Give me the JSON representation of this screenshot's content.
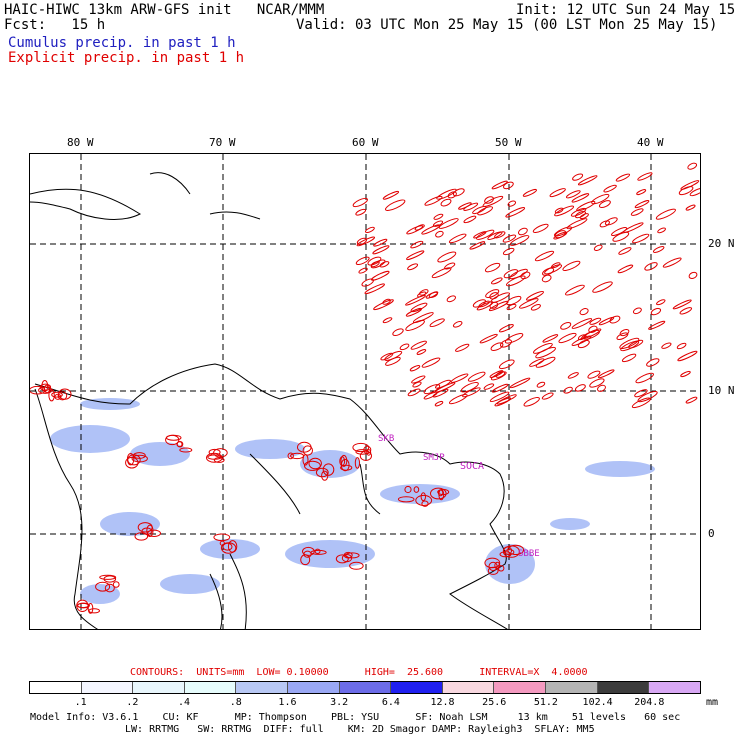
{
  "header": {
    "line1_left": "HAIC-HIWC 13km ARW-GFS init   NCAR/MMM",
    "line1_right": "Init: 12 UTC Sun 24 May 15",
    "line2_left": "Fcst:   15 h",
    "line2_right": "Valid: 03 UTC Mon 25 May 15 (00 LST Mon 25 May 15)",
    "legend_cumulus": "Cumulus precip. in past 1 h",
    "legend_explicit": "Explicit precip. in past 1 h"
  },
  "map": {
    "lon_labels": [
      "80 W",
      "70 W",
      "60 W",
      "50 W",
      "40 W"
    ],
    "lat_labels": [
      "20 N",
      "10 N",
      "0"
    ],
    "stations": [
      "SKB",
      "SMJP",
      "SOCA",
      "SBBE"
    ],
    "colors": {
      "cumulus": "#6c8cf0",
      "explicit": "#e00000",
      "grid": "#000000"
    }
  },
  "contour_info": "CONTOURS:  UNITS=mm  LOW= 0.10000      HIGH=  25.600      INTERVAL=X  4.0000",
  "colorbar": {
    "ticks": [
      ".1",
      ".2",
      ".4",
      ".8",
      "1.6",
      "3.2",
      "6.4",
      "12.8",
      "25.6",
      "51.2",
      "102.4",
      "204.8"
    ],
    "units": "mm",
    "colors": [
      "#ffffff",
      "#f4f6ff",
      "#e8f6fc",
      "#e6fcfc",
      "#b8c8f4",
      "#9aa8f4",
      "#6c6ce8",
      "#2020f0",
      "#f8d8e0",
      "#f49ac0",
      "#b4b4b4",
      "#3c3c3c",
      "#d8a8f4"
    ]
  },
  "model_info": {
    "line1": "Model Info: V3.6.1    CU: KF      MP: Thompson    PBL: YSU      SF: Noah LSM     13 km    51 levels   60 sec",
    "line2": "LW: RRTMG   SW: RRTMG  DIFF: full    KM: 2D Smagor DAMP: Rayleigh3  SFLAY: MM5"
  }
}
